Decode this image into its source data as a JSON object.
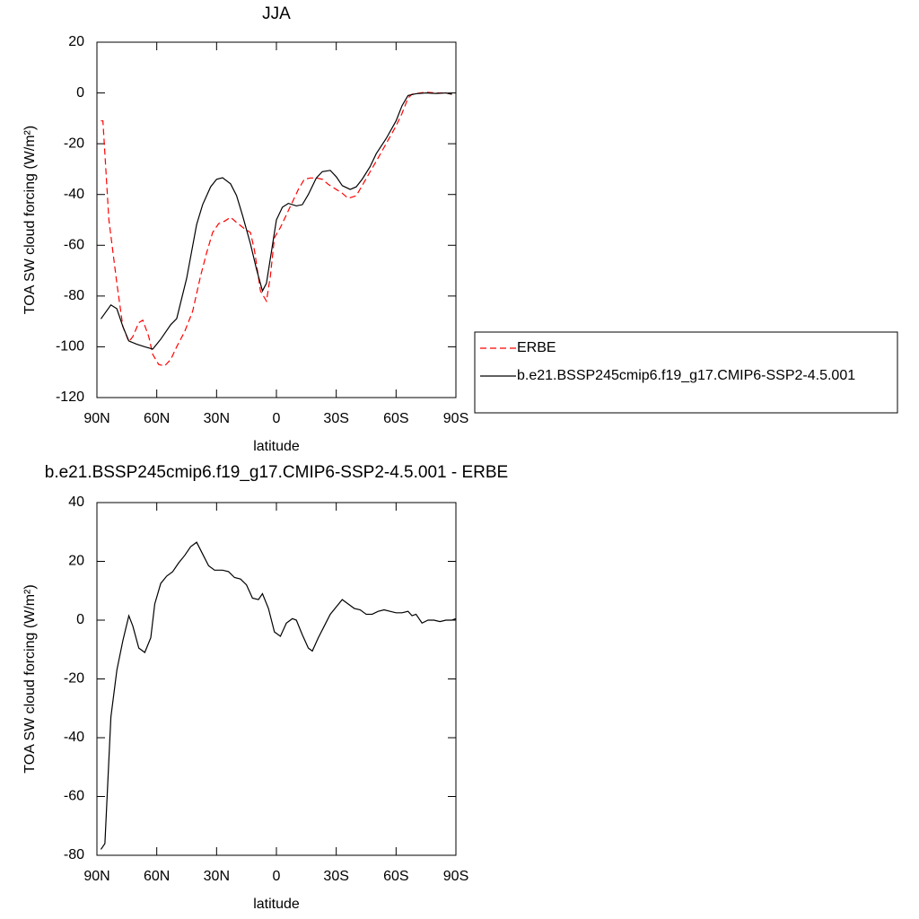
{
  "chart_data": [
    {
      "type": "line",
      "title": "JJA",
      "xlabel": "latitude",
      "ylabel": "TOA SW cloud forcing (W/m²)",
      "xlim": [
        90,
        -90
      ],
      "xticks": [
        {
          "value": 90,
          "label": "90N"
        },
        {
          "value": 60,
          "label": "60N"
        },
        {
          "value": 30,
          "label": "30N"
        },
        0,
        {
          "value": -30,
          "label": "30S"
        },
        {
          "value": -60,
          "label": "60S"
        },
        {
          "value": -90,
          "label": "90S"
        }
      ],
      "ylim": [
        -120,
        20
      ],
      "yticks": [
        -120,
        -100,
        -80,
        -60,
        -40,
        -20,
        0,
        20
      ],
      "legend": "right",
      "series": [
        {
          "name": "ERBE",
          "color": "#ff0000",
          "dash": true,
          "x": [
            88,
            87,
            84,
            80,
            77,
            74,
            72,
            69,
            67,
            64,
            62,
            59,
            56,
            53,
            50,
            46,
            42,
            38,
            35,
            32,
            29,
            26,
            23,
            20,
            16,
            13,
            11,
            8,
            5,
            3,
            1,
            -2,
            -5,
            -8,
            -11,
            -14,
            -17,
            -20,
            -23,
            -26,
            -30,
            -33,
            -36,
            -40,
            -43,
            -47,
            -50,
            -55,
            -60,
            -63,
            -66,
            -68,
            -72,
            -75,
            -80,
            -85,
            -88
          ],
          "values": [
            -11,
            -11,
            -50,
            -75,
            -92,
            -98,
            -96,
            -90.5,
            -89.5,
            -96,
            -103,
            -107,
            -107.5,
            -105,
            -100,
            -94,
            -86,
            -72,
            -63,
            -55,
            -51.5,
            -50.5,
            -49,
            -51,
            -53.5,
            -55,
            -62,
            -78,
            -82,
            -72,
            -57,
            -53,
            -48,
            -43,
            -38,
            -34,
            -33.5,
            -33.5,
            -34,
            -36,
            -38,
            -39.5,
            -41.5,
            -40.5,
            -36.5,
            -31,
            -27,
            -20,
            -13,
            -8,
            -2,
            -0.5,
            0,
            0.3,
            0,
            0,
            -0.5
          ]
        },
        {
          "name": "b.e21.BSSP245cmip6.f19_g17.CMIP6-SSP2-4.5.001",
          "color": "#000000",
          "dash": false,
          "x": [
            88,
            83,
            80,
            77,
            74,
            70,
            66,
            62,
            58,
            53,
            50,
            45,
            40,
            37,
            33,
            30,
            27,
            23,
            20,
            17,
            13,
            10,
            7,
            5,
            2,
            0,
            -3,
            -6,
            -10,
            -13,
            -16,
            -20,
            -23,
            -27,
            -30,
            -33,
            -37,
            -40,
            -43,
            -47,
            -50,
            -55,
            -60,
            -63,
            -66,
            -70,
            -75,
            -80,
            -85,
            -88
          ],
          "values": [
            -89,
            -83.5,
            -85,
            -92,
            -97.7,
            -99,
            -100,
            -100.9,
            -97,
            -91.3,
            -88.9,
            -73,
            -51.8,
            -44,
            -37,
            -34,
            -33.4,
            -35.8,
            -40.4,
            -48.2,
            -59.5,
            -69.4,
            -78,
            -75,
            -60,
            -50,
            -45,
            -43.5,
            -44.5,
            -44,
            -40,
            -33.5,
            -31,
            -30.5,
            -33,
            -36.5,
            -38,
            -37,
            -34,
            -29,
            -24,
            -18,
            -11,
            -5,
            -1,
            -0.3,
            0,
            -0.2,
            0,
            -0.5
          ]
        }
      ]
    },
    {
      "type": "line",
      "title": "b.e21.BSSP245cmip6.f19_g17.CMIP6-SSP2-4.5.001 - ERBE",
      "xlabel": "latitude",
      "ylabel": "TOA SW cloud forcing (W/m²)",
      "xlim": [
        90,
        -90
      ],
      "xticks": [
        {
          "value": 90,
          "label": "90N"
        },
        {
          "value": 60,
          "label": "60N"
        },
        {
          "value": 30,
          "label": "30N"
        },
        0,
        {
          "value": -30,
          "label": "30S"
        },
        {
          "value": -60,
          "label": "60S"
        },
        {
          "value": -90,
          "label": "90S"
        }
      ],
      "ylim": [
        -80,
        40
      ],
      "yticks": [
        -80,
        -60,
        -40,
        -20,
        0,
        20,
        40
      ],
      "series": [
        {
          "color": "#000000",
          "dash": false,
          "x": [
            88,
            86,
            83,
            80,
            77,
            74,
            72,
            69,
            66,
            63,
            61,
            58,
            55,
            52,
            49,
            46,
            43,
            40,
            37,
            34,
            31,
            27,
            24,
            21,
            18,
            15,
            12,
            9,
            7,
            4,
            1,
            -2,
            -5,
            -8,
            -10,
            -13,
            -16,
            -18,
            -21,
            -24,
            -27,
            -30,
            -33,
            -36,
            -39,
            -42,
            -45,
            -48,
            -51,
            -54,
            -57,
            -60,
            -63,
            -66,
            -68,
            -70,
            -73,
            -76,
            -79,
            -82,
            -85,
            -88,
            -90
          ],
          "values": [
            -78,
            -76,
            -33,
            -17,
            -7,
            1.5,
            -2,
            -9.5,
            -11,
            -6,
            5.5,
            12.5,
            15,
            16.5,
            19.5,
            22,
            25,
            26.5,
            22.5,
            18.5,
            17,
            17,
            16.5,
            14.5,
            14,
            12,
            7.5,
            7,
            9,
            4,
            -4,
            -5.5,
            -1,
            0.5,
            0,
            -5,
            -9.5,
            -10.5,
            -6,
            -2,
            2,
            4.5,
            7,
            5.5,
            4,
            3.5,
            2,
            2,
            3,
            3.5,
            3,
            2.5,
            2.5,
            3,
            1.5,
            2,
            -1,
            0,
            0,
            -0.5,
            0,
            0,
            0.5
          ]
        }
      ]
    }
  ]
}
